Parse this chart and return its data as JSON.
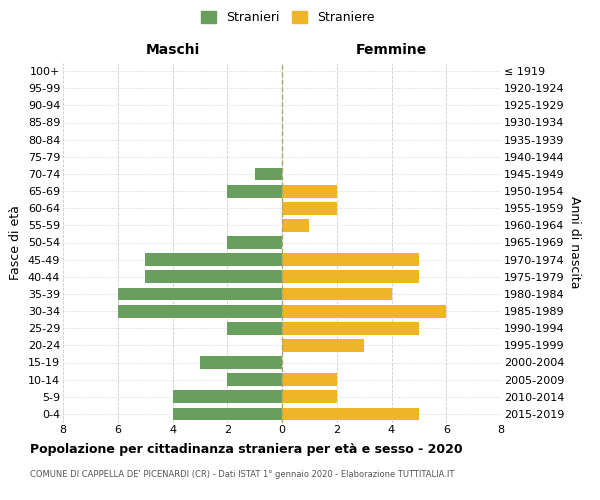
{
  "age_groups": [
    "0-4",
    "5-9",
    "10-14",
    "15-19",
    "20-24",
    "25-29",
    "30-34",
    "35-39",
    "40-44",
    "45-49",
    "50-54",
    "55-59",
    "60-64",
    "65-69",
    "70-74",
    "75-79",
    "80-84",
    "85-89",
    "90-94",
    "95-99",
    "100+"
  ],
  "birth_years": [
    "2015-2019",
    "2010-2014",
    "2005-2009",
    "2000-2004",
    "1995-1999",
    "1990-1994",
    "1985-1989",
    "1980-1984",
    "1975-1979",
    "1970-1974",
    "1965-1969",
    "1960-1964",
    "1955-1959",
    "1950-1954",
    "1945-1949",
    "1940-1944",
    "1935-1939",
    "1930-1934",
    "1925-1929",
    "1920-1924",
    "≤ 1919"
  ],
  "males": [
    4,
    4,
    2,
    3,
    0,
    2,
    6,
    6,
    5,
    5,
    2,
    0,
    0,
    2,
    1,
    0,
    0,
    0,
    0,
    0,
    0
  ],
  "females": [
    5,
    2,
    2,
    0,
    3,
    5,
    6,
    4,
    5,
    5,
    0,
    1,
    2,
    2,
    0,
    0,
    0,
    0,
    0,
    0,
    0
  ],
  "male_color": "#6a9e5e",
  "female_color": "#f0b429",
  "title": "Popolazione per cittadinanza straniera per età e sesso - 2020",
  "subtitle": "COMUNE DI CAPPELLA DE' PICENARDI (CR) - Dati ISTAT 1° gennaio 2020 - Elaborazione TUTTITALIA.IT",
  "xlabel_left": "Maschi",
  "xlabel_right": "Femmine",
  "ylabel_left": "Fasce di età",
  "ylabel_right": "Anni di nascita",
  "legend_male": "Stranieri",
  "legend_female": "Straniere",
  "xlim": 8,
  "background_color": "#ffffff",
  "grid_color": "#cccccc"
}
